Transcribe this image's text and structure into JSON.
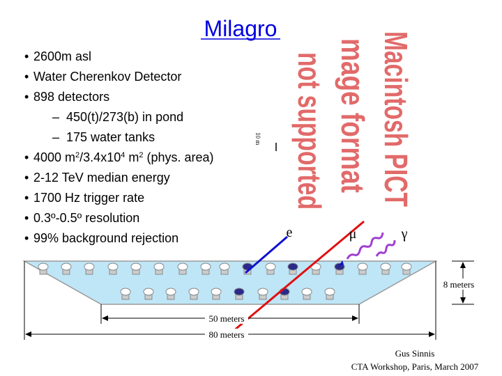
{
  "header": {
    "title": "Milagro"
  },
  "bullets": [
    {
      "text": "2600m asl"
    },
    {
      "text": "Water Cherenkov Detector"
    },
    {
      "text": "898 detectors"
    },
    {
      "text": "450(t)/273(b) in pond",
      "level": 2
    },
    {
      "text": "175 water tanks",
      "level": 2
    },
    {
      "parts": [
        {
          "text": "4000 m"
        },
        {
          "text": "2",
          "sup": true
        },
        {
          "text": "/3.4x10"
        },
        {
          "text": "4",
          "sup": true
        },
        {
          "text": " m"
        },
        {
          "text": "2",
          "sup": true
        },
        {
          "text": " (phys. area)"
        }
      ]
    },
    {
      "text": "2-12 TeV median energy"
    },
    {
      "text": "1700 Hz trigger rate"
    },
    {
      "text": "0.3º-0.5º resolution"
    },
    {
      "text": "99% background rejection"
    }
  ],
  "placeholder": {
    "lines": [
      "Macintosh PICT",
      "mage format",
      "not supported"
    ]
  },
  "diagram": {
    "scale_label": "10 m",
    "particles": [
      "e",
      "μ",
      "γ"
    ],
    "depth": "8 meters",
    "bottom_width": "50 meters",
    "top_width": "80 meters"
  },
  "footer": {
    "author": "Gus Sinnis",
    "event": "CTA Workshop, Paris, March 2007"
  }
}
